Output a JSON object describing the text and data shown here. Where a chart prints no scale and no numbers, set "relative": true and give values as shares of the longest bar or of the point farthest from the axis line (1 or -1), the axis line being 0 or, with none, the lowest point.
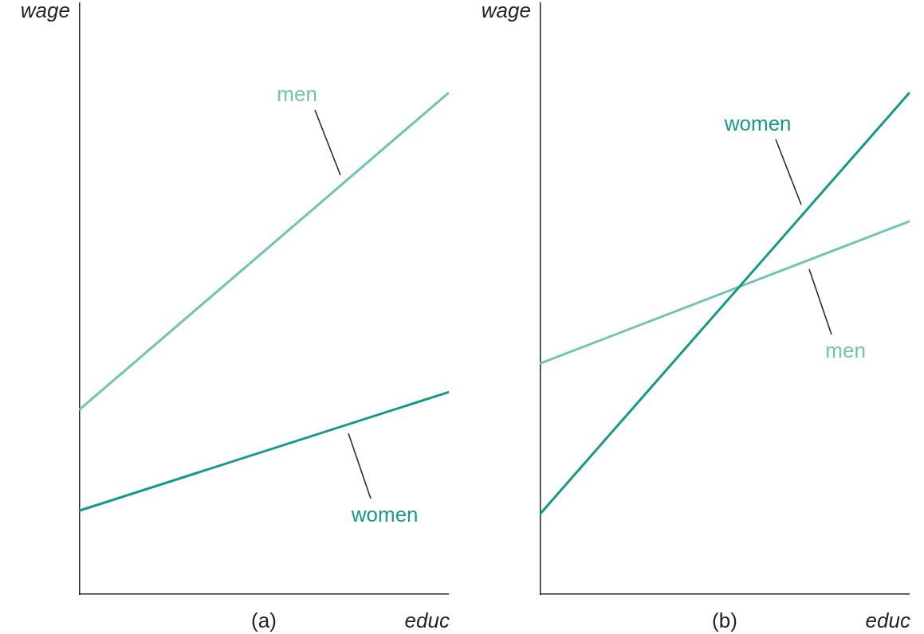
{
  "chart_data": [
    {
      "type": "line",
      "relative": true,
      "xlabel": "educ",
      "ylabel": "wage",
      "annotations": [
        "(a)"
      ],
      "categories": [
        null,
        null
      ],
      "series": [
        {
          "name": "men",
          "color": "#72c3b1",
          "values": [
            0.369,
            1
          ]
        },
        {
          "name": "women",
          "color": "#17998a",
          "values": [
            0.167,
            0.403
          ]
        }
      ]
    },
    {
      "type": "line",
      "relative": true,
      "xlabel": "educ",
      "ylabel": "wage",
      "annotations": [
        "(b)"
      ],
      "categories": [
        null,
        null
      ],
      "series": [
        {
          "name": "women",
          "color": "#17998a",
          "values": [
            0.161,
            1
          ]
        },
        {
          "name": "men",
          "color": "#72c3b1",
          "values": [
            0.461,
            0.744
          ]
        }
      ]
    }
  ]
}
